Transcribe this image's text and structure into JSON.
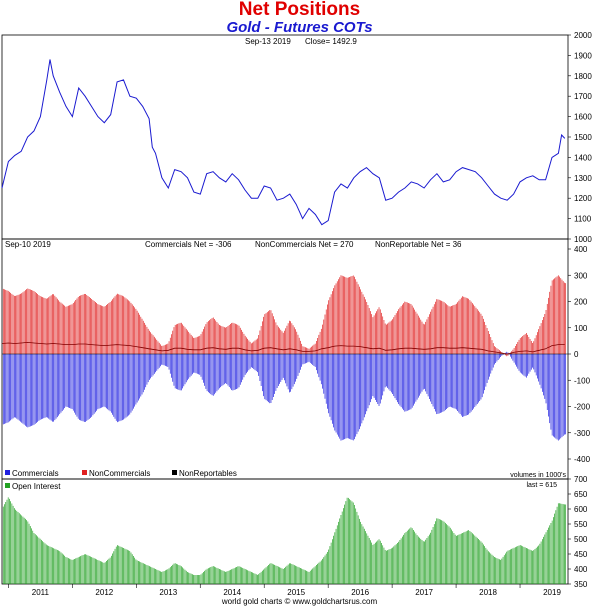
{
  "header": {
    "title": "Net Positions",
    "subtitle": "Gold - Futures COTs"
  },
  "footer": "world gold charts © www.goldchartsrus.com",
  "colors": {
    "title": "#e00000",
    "subtitle": "#1a1ad0",
    "price_line": "#1a1ad0",
    "commercials": "#2020e0",
    "noncommercials": "#e02020",
    "nonreportables": "#800000",
    "open_interest": "#22a022"
  },
  "chart_data": [
    {
      "type": "line",
      "panel": "price",
      "annotation_date": "Sep-13  2019",
      "annotation_close": "Close= 1492.9",
      "ylim": [
        1000,
        2000
      ],
      "yticks": [
        "1000",
        "1100",
        "1200",
        "1300",
        "1400",
        "1500",
        "1600",
        "1700",
        "1800",
        "1900",
        "2000"
      ],
      "series": [
        {
          "x": [
            2010.9,
            2011.0,
            2011.1,
            2011.2,
            2011.3,
            2011.4,
            2011.5,
            2011.6,
            2011.65,
            2011.7,
            2011.8,
            2011.9,
            2012.0,
            2012.1,
            2012.2,
            2012.3,
            2012.4,
            2012.5,
            2012.6,
            2012.7,
            2012.8,
            2012.9,
            2013.0,
            2013.1,
            2013.2,
            2013.25,
            2013.3,
            2013.4,
            2013.5,
            2013.6,
            2013.7,
            2013.8,
            2013.9,
            2014.0,
            2014.1,
            2014.2,
            2014.3,
            2014.4,
            2014.5,
            2014.6,
            2014.7,
            2014.8,
            2014.9,
            2015.0,
            2015.1,
            2015.2,
            2015.3,
            2015.4,
            2015.5,
            2015.6,
            2015.7,
            2015.8,
            2015.9,
            2016.0,
            2016.1,
            2016.2,
            2016.3,
            2016.4,
            2016.5,
            2016.6,
            2016.7,
            2016.8,
            2016.9,
            2017.0,
            2017.1,
            2017.2,
            2017.3,
            2017.4,
            2017.5,
            2017.6,
            2017.7,
            2017.8,
            2017.9,
            2018.0,
            2018.1,
            2018.2,
            2018.3,
            2018.4,
            2018.5,
            2018.6,
            2018.7,
            2018.8,
            2018.9,
            2019.0,
            2019.1,
            2019.2,
            2019.3,
            2019.4,
            2019.5,
            2019.6,
            2019.65,
            2019.7
          ],
          "values": [
            1250,
            1380,
            1410,
            1430,
            1500,
            1530,
            1600,
            1780,
            1880,
            1800,
            1720,
            1650,
            1600,
            1740,
            1700,
            1650,
            1600,
            1570,
            1610,
            1770,
            1780,
            1700,
            1690,
            1650,
            1590,
            1450,
            1420,
            1300,
            1250,
            1340,
            1330,
            1300,
            1230,
            1220,
            1320,
            1330,
            1300,
            1280,
            1320,
            1290,
            1240,
            1200,
            1200,
            1260,
            1250,
            1190,
            1200,
            1220,
            1170,
            1100,
            1150,
            1120,
            1070,
            1090,
            1230,
            1270,
            1250,
            1300,
            1330,
            1350,
            1320,
            1300,
            1190,
            1200,
            1230,
            1250,
            1280,
            1270,
            1250,
            1290,
            1320,
            1280,
            1290,
            1330,
            1350,
            1340,
            1330,
            1300,
            1260,
            1220,
            1200,
            1190,
            1220,
            1280,
            1300,
            1310,
            1290,
            1290,
            1400,
            1420,
            1510,
            1493
          ]
        }
      ]
    },
    {
      "type": "bar",
      "panel": "net-positions",
      "date_label": "Sep-10  2019",
      "stats": [
        "Commercials Net = -306",
        "NonCommercials Net = 270",
        "NonReportable Net = 36"
      ],
      "ylim": [
        -400,
        400
      ],
      "yticks": [
        "-400",
        "-300",
        "-200",
        "-100",
        "0",
        "100",
        "200",
        "300",
        "400"
      ],
      "volume_note": "volumes in 1000's",
      "legend": [
        "Commercials",
        "NonCommercials",
        "NonReportables"
      ],
      "x": [
        2010.9,
        2011.0,
        2011.1,
        2011.2,
        2011.3,
        2011.4,
        2011.5,
        2011.6,
        2011.7,
        2011.8,
        2011.9,
        2012.0,
        2012.1,
        2012.2,
        2012.3,
        2012.4,
        2012.5,
        2012.6,
        2012.7,
        2012.8,
        2012.9,
        2013.0,
        2013.1,
        2013.2,
        2013.3,
        2013.4,
        2013.5,
        2013.6,
        2013.7,
        2013.8,
        2013.9,
        2014.0,
        2014.1,
        2014.2,
        2014.3,
        2014.4,
        2014.5,
        2014.6,
        2014.7,
        2014.8,
        2014.9,
        2015.0,
        2015.1,
        2015.2,
        2015.3,
        2015.4,
        2015.5,
        2015.6,
        2015.7,
        2015.8,
        2015.9,
        2016.0,
        2016.1,
        2016.2,
        2016.3,
        2016.4,
        2016.5,
        2016.6,
        2016.7,
        2016.8,
        2016.9,
        2017.0,
        2017.1,
        2017.2,
        2017.3,
        2017.4,
        2017.5,
        2017.6,
        2017.7,
        2017.8,
        2017.9,
        2018.0,
        2018.1,
        2018.2,
        2018.3,
        2018.4,
        2018.5,
        2018.6,
        2018.7,
        2018.8,
        2018.9,
        2019.0,
        2019.1,
        2019.2,
        2019.3,
        2019.4,
        2019.5,
        2019.6,
        2019.7
      ],
      "series": [
        {
          "name": "NonCommercials",
          "values": [
            250,
            240,
            220,
            230,
            250,
            240,
            220,
            210,
            230,
            200,
            180,
            190,
            220,
            230,
            210,
            190,
            180,
            200,
            230,
            220,
            200,
            170,
            130,
            90,
            60,
            30,
            40,
            110,
            120,
            90,
            60,
            70,
            120,
            140,
            110,
            100,
            120,
            110,
            70,
            40,
            60,
            150,
            170,
            110,
            80,
            130,
            90,
            30,
            20,
            40,
            100,
            200,
            260,
            300,
            290,
            300,
            250,
            200,
            140,
            180,
            110,
            130,
            170,
            200,
            190,
            150,
            110,
            160,
            210,
            200,
            180,
            190,
            220,
            210,
            180,
            150,
            90,
            30,
            10,
            -10,
            20,
            60,
            80,
            40,
            100,
            160,
            280,
            300,
            270
          ]
        },
        {
          "name": "Commercials",
          "values": [
            -270,
            -260,
            -240,
            -260,
            -280,
            -270,
            -250,
            -240,
            -260,
            -230,
            -200,
            -210,
            -250,
            -260,
            -240,
            -210,
            -200,
            -220,
            -260,
            -250,
            -230,
            -190,
            -150,
            -100,
            -70,
            -40,
            -50,
            -130,
            -140,
            -100,
            -70,
            -80,
            -140,
            -160,
            -130,
            -110,
            -140,
            -130,
            -80,
            -50,
            -70,
            -170,
            -190,
            -130,
            -90,
            -150,
            -100,
            -40,
            -30,
            -50,
            -120,
            -220,
            -290,
            -330,
            -320,
            -330,
            -280,
            -220,
            -160,
            -200,
            -120,
            -150,
            -190,
            -220,
            -210,
            -170,
            -130,
            -180,
            -230,
            -220,
            -200,
            -210,
            -240,
            -230,
            -200,
            -170,
            -100,
            -40,
            -10,
            10,
            -30,
            -70,
            -90,
            -50,
            -110,
            -180,
            -310,
            -330,
            -306
          ]
        },
        {
          "name": "NonReportables",
          "values": [
            40,
            42,
            40,
            42,
            44,
            42,
            40,
            38,
            40,
            38,
            36,
            36,
            38,
            38,
            36,
            34,
            32,
            34,
            36,
            34,
            32,
            28,
            24,
            20,
            16,
            12,
            14,
            22,
            22,
            18,
            16,
            16,
            22,
            24,
            20,
            18,
            22,
            22,
            16,
            12,
            14,
            22,
            24,
            20,
            16,
            20,
            16,
            10,
            10,
            12,
            20,
            24,
            30,
            32,
            30,
            30,
            28,
            24,
            20,
            22,
            14,
            16,
            20,
            22,
            22,
            20,
            18,
            20,
            24,
            24,
            22,
            22,
            24,
            22,
            20,
            18,
            12,
            8,
            4,
            0,
            6,
            10,
            12,
            8,
            14,
            20,
            32,
            36,
            36
          ]
        }
      ]
    },
    {
      "type": "bar",
      "panel": "open-interest",
      "legend": [
        "Open Interest"
      ],
      "last_label": "last = 615",
      "ylim": [
        350,
        700
      ],
      "yticks": [
        "350",
        "400",
        "450",
        "500",
        "550",
        "600",
        "650",
        "700"
      ],
      "xticks": [
        "2011",
        "2012",
        "2013",
        "2014",
        "2015",
        "2016",
        "2017",
        "2018",
        "2019"
      ],
      "x": [
        2010.9,
        2011.0,
        2011.1,
        2011.2,
        2011.3,
        2011.4,
        2011.5,
        2011.6,
        2011.7,
        2011.8,
        2011.9,
        2012.0,
        2012.1,
        2012.2,
        2012.3,
        2012.4,
        2012.5,
        2012.6,
        2012.7,
        2012.8,
        2012.9,
        2013.0,
        2013.1,
        2013.2,
        2013.3,
        2013.4,
        2013.5,
        2013.6,
        2013.7,
        2013.8,
        2013.9,
        2014.0,
        2014.1,
        2014.2,
        2014.3,
        2014.4,
        2014.5,
        2014.6,
        2014.7,
        2014.8,
        2014.9,
        2015.0,
        2015.1,
        2015.2,
        2015.3,
        2015.4,
        2015.5,
        2015.6,
        2015.7,
        2015.8,
        2015.9,
        2016.0,
        2016.1,
        2016.2,
        2016.3,
        2016.4,
        2016.5,
        2016.6,
        2016.7,
        2016.8,
        2016.9,
        2017.0,
        2017.1,
        2017.2,
        2017.3,
        2017.4,
        2017.5,
        2017.6,
        2017.7,
        2017.8,
        2017.9,
        2018.0,
        2018.1,
        2018.2,
        2018.3,
        2018.4,
        2018.5,
        2018.6,
        2018.7,
        2018.8,
        2018.9,
        2019.0,
        2019.1,
        2019.2,
        2019.3,
        2019.4,
        2019.5,
        2019.6,
        2019.7
      ],
      "values": [
        600,
        640,
        600,
        580,
        560,
        520,
        500,
        480,
        470,
        460,
        440,
        430,
        440,
        450,
        440,
        430,
        420,
        440,
        480,
        470,
        460,
        430,
        420,
        410,
        400,
        390,
        400,
        420,
        410,
        390,
        380,
        380,
        400,
        410,
        400,
        390,
        400,
        410,
        400,
        390,
        380,
        400,
        420,
        410,
        400,
        420,
        410,
        400,
        390,
        410,
        430,
        460,
        520,
        580,
        640,
        620,
        560,
        520,
        480,
        500,
        460,
        470,
        490,
        520,
        540,
        510,
        490,
        520,
        570,
        560,
        540,
        510,
        520,
        530,
        510,
        490,
        460,
        440,
        430,
        460,
        470,
        480,
        470,
        460,
        480,
        520,
        560,
        620,
        615
      ]
    }
  ]
}
